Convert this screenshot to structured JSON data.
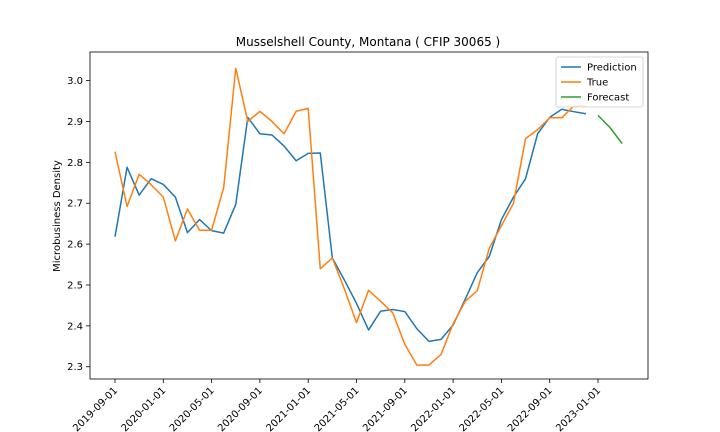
{
  "chart_data": {
    "type": "line",
    "title": "Musselshell County, Montana ( CFIP 30065 )",
    "xlabel": "",
    "ylabel": "Microbusiness Density",
    "ylim": [
      2.27,
      3.07
    ],
    "x_tick_labels": [
      "2019-09-01",
      "2020-01-01",
      "2020-05-01",
      "2020-09-01",
      "2021-01-01",
      "2021-05-01",
      "2021-09-01",
      "2022-01-01",
      "2022-05-01",
      "2022-09-01",
      "2023-01-01"
    ],
    "y_tick_labels": [
      "2.3",
      "2.4",
      "2.5",
      "2.6",
      "2.7",
      "2.8",
      "2.9",
      "3.0"
    ],
    "legend_position": "top-right",
    "grid": false,
    "series": [
      {
        "name": "Prediction",
        "color": "#1f77b4",
        "points": [
          [
            "2019-09-01",
            2.618
          ],
          [
            "2019-10-01",
            2.788
          ],
          [
            "2019-11-01",
            2.72
          ],
          [
            "2019-12-01",
            2.76
          ],
          [
            "2020-01-01",
            2.746
          ],
          [
            "2020-02-01",
            2.715
          ],
          [
            "2020-03-01",
            2.628
          ],
          [
            "2020-04-01",
            2.66
          ],
          [
            "2020-05-01",
            2.633
          ],
          [
            "2020-06-01",
            2.627
          ],
          [
            "2020-07-01",
            2.697
          ],
          [
            "2020-08-01",
            2.91
          ],
          [
            "2020-09-01",
            2.87
          ],
          [
            "2020-10-01",
            2.867
          ],
          [
            "2020-11-01",
            2.84
          ],
          [
            "2020-12-01",
            2.804
          ],
          [
            "2021-01-01",
            2.822
          ],
          [
            "2021-02-01",
            2.823
          ],
          [
            "2021-03-01",
            2.566
          ],
          [
            "2021-04-01",
            2.512
          ],
          [
            "2021-05-01",
            2.455
          ],
          [
            "2021-06-01",
            2.39
          ],
          [
            "2021-07-01",
            2.436
          ],
          [
            "2021-08-01",
            2.44
          ],
          [
            "2021-09-01",
            2.435
          ],
          [
            "2021-10-01",
            2.393
          ],
          [
            "2021-11-01",
            2.362
          ],
          [
            "2021-12-01",
            2.367
          ],
          [
            "2022-01-01",
            2.402
          ],
          [
            "2022-02-01",
            2.465
          ],
          [
            "2022-03-01",
            2.53
          ],
          [
            "2022-04-01",
            2.57
          ],
          [
            "2022-05-01",
            2.66
          ],
          [
            "2022-06-01",
            2.715
          ],
          [
            "2022-07-01",
            2.76
          ],
          [
            "2022-08-01",
            2.87
          ],
          [
            "2022-09-01",
            2.91
          ],
          [
            "2022-10-01",
            2.93
          ],
          [
            "2022-11-01",
            2.924
          ],
          [
            "2022-12-01",
            2.919
          ]
        ]
      },
      {
        "name": "True",
        "color": "#ff7f0e",
        "points": [
          [
            "2019-09-01",
            2.826
          ],
          [
            "2019-10-01",
            2.692
          ],
          [
            "2019-11-01",
            2.771
          ],
          [
            "2019-12-01",
            2.745
          ],
          [
            "2020-01-01",
            2.715
          ],
          [
            "2020-02-01",
            2.608
          ],
          [
            "2020-03-01",
            2.686
          ],
          [
            "2020-04-01",
            2.634
          ],
          [
            "2020-05-01",
            2.634
          ],
          [
            "2020-06-01",
            2.738
          ],
          [
            "2020-07-01",
            3.03
          ],
          [
            "2020-08-01",
            2.9
          ],
          [
            "2020-09-01",
            2.925
          ],
          [
            "2020-10-01",
            2.9
          ],
          [
            "2020-11-01",
            2.87
          ],
          [
            "2020-12-01",
            2.925
          ],
          [
            "2021-01-01",
            2.932
          ],
          [
            "2021-02-01",
            2.54
          ],
          [
            "2021-03-01",
            2.566
          ],
          [
            "2021-04-01",
            2.49
          ],
          [
            "2021-05-01",
            2.408
          ],
          [
            "2021-06-01",
            2.487
          ],
          [
            "2021-07-01",
            2.46
          ],
          [
            "2021-08-01",
            2.432
          ],
          [
            "2021-09-01",
            2.355
          ],
          [
            "2021-10-01",
            2.304
          ],
          [
            "2021-11-01",
            2.304
          ],
          [
            "2021-12-01",
            2.33
          ],
          [
            "2022-01-01",
            2.405
          ],
          [
            "2022-02-01",
            2.46
          ],
          [
            "2022-03-01",
            2.486
          ],
          [
            "2022-04-01",
            2.59
          ],
          [
            "2022-05-01",
            2.645
          ],
          [
            "2022-06-01",
            2.7
          ],
          [
            "2022-07-01",
            2.858
          ],
          [
            "2022-08-01",
            2.88
          ],
          [
            "2022-09-01",
            2.909
          ],
          [
            "2022-10-01",
            2.909
          ],
          [
            "2022-11-01",
            2.938
          ],
          [
            "2022-12-01",
            2.938
          ]
        ]
      },
      {
        "name": "Forecast",
        "color": "#2ca02c",
        "points": [
          [
            "2023-01-01",
            2.915
          ],
          [
            "2023-02-01",
            2.885
          ],
          [
            "2023-03-01",
            2.846
          ]
        ]
      }
    ]
  }
}
